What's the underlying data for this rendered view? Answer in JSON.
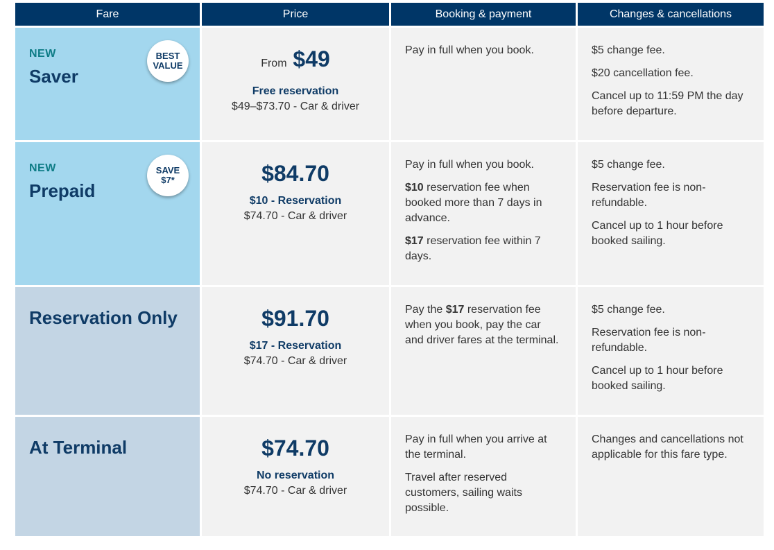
{
  "header": {
    "fare": "Fare",
    "price": "Price",
    "booking": "Booking & payment",
    "changes": "Changes & cancellations"
  },
  "rows": [
    {
      "new_label": "NEW",
      "name": "Saver",
      "badge_line1": "BEST",
      "badge_line2": "VALUE",
      "price_prefix": "From",
      "price": "$49",
      "price_sub": "Free reservation",
      "price_detail": "$49–$73.70 - Car & driver",
      "booking": [
        "Pay in full when you book."
      ],
      "changes": [
        "$5 change fee.",
        "$20 cancellation fee.",
        "Cancel up to 11:59 PM the day before departure."
      ]
    },
    {
      "new_label": "NEW",
      "name": "Prepaid",
      "badge_line1": "SAVE",
      "badge_line2": "$7*",
      "price": "$84.70",
      "price_sub": "$10 - Reservation",
      "price_detail": "$74.70 - Car & driver",
      "booking": [
        "Pay in full when you book.",
        {
          "bold": "$10",
          "text": " reservation fee when booked more than 7 days in advance."
        },
        {
          "bold": "$17",
          "text": " reservation fee within 7 days."
        }
      ],
      "changes": [
        "$5 change fee.",
        "Reservation fee is non-refundable.",
        "Cancel up to 1 hour before booked sailing."
      ]
    },
    {
      "name": "Reservation Only",
      "price": "$91.70",
      "price_sub": "$17 - Reservation",
      "price_detail": "$74.70 - Car & driver",
      "booking_pre": "Pay the ",
      "booking_bold": "$17",
      "booking_post": " reservation fee when you book, pay the car and driver fares at the terminal.",
      "changes": [
        "$5 change fee.",
        "Reservation fee is non-refundable.",
        "Cancel up to 1 hour before booked sailing."
      ]
    },
    {
      "name": "At Terminal",
      "price": "$74.70",
      "price_sub": "No reservation",
      "price_detail": "$74.70 - Car & driver",
      "booking": [
        "Pay in full when you arrive at the terminal.",
        "Travel after reserved customers, sailing waits possible."
      ],
      "changes": [
        "Changes and cancellations not applicable for this fare type."
      ]
    }
  ],
  "colors": {
    "header_bg": "#003667",
    "fare_light": "#a3d7ee",
    "fare_grey": "#c3d5e4",
    "cell_bg": "#f2f2f2",
    "accent_new": "#0e7c86",
    "navy_text": "#0f3b66"
  }
}
